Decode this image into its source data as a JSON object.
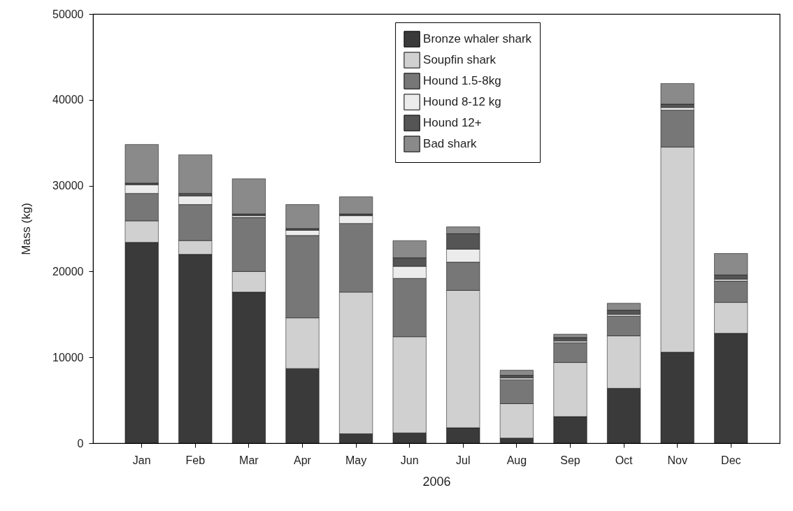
{
  "chart_data": {
    "type": "bar",
    "stacked": true,
    "xlabel": "2006",
    "ylabel": "Mass (kg)",
    "categories": [
      "Jan",
      "Feb",
      "Mar",
      "Apr",
      "May",
      "Jun",
      "Jul",
      "Aug",
      "Sep",
      "Oct",
      "Nov",
      "Dec"
    ],
    "series": [
      {
        "name": "Bronze whaler shark",
        "color": "#3a3a3a",
        "values": [
          23400,
          22000,
          17600,
          8700,
          1100,
          1200,
          1800,
          600,
          3100,
          6400,
          10600,
          12800
        ]
      },
      {
        "name": "Soupfin shark",
        "color": "#d0d0d0",
        "values": [
          2500,
          1600,
          2400,
          5900,
          16500,
          11200,
          16000,
          4000,
          6300,
          6100,
          23900,
          3600
        ]
      },
      {
        "name": "Hound 1.5-8kg",
        "color": "#777777",
        "values": [
          3200,
          4200,
          6300,
          9600,
          8000,
          6800,
          3300,
          2800,
          2300,
          2300,
          4300,
          2500
        ]
      },
      {
        "name": "Hound 8-12 kg",
        "color": "#ececec",
        "values": [
          1000,
          1000,
          200,
          600,
          900,
          1400,
          1500,
          200,
          200,
          200,
          300,
          200
        ]
      },
      {
        "name": "Hound 12+",
        "color": "#555555",
        "values": [
          200,
          300,
          200,
          200,
          200,
          1000,
          1800,
          300,
          400,
          500,
          400,
          500
        ]
      },
      {
        "name": "Bad shark",
        "color": "#8a8a8a",
        "values": [
          4500,
          4500,
          4100,
          2800,
          2000,
          2000,
          800,
          600,
          400,
          800,
          2400,
          2500
        ]
      }
    ],
    "ylim": [
      0,
      50000
    ],
    "yticks": [
      0,
      10000,
      20000,
      30000,
      40000,
      50000
    ],
    "grid": false,
    "legend": "top right"
  }
}
